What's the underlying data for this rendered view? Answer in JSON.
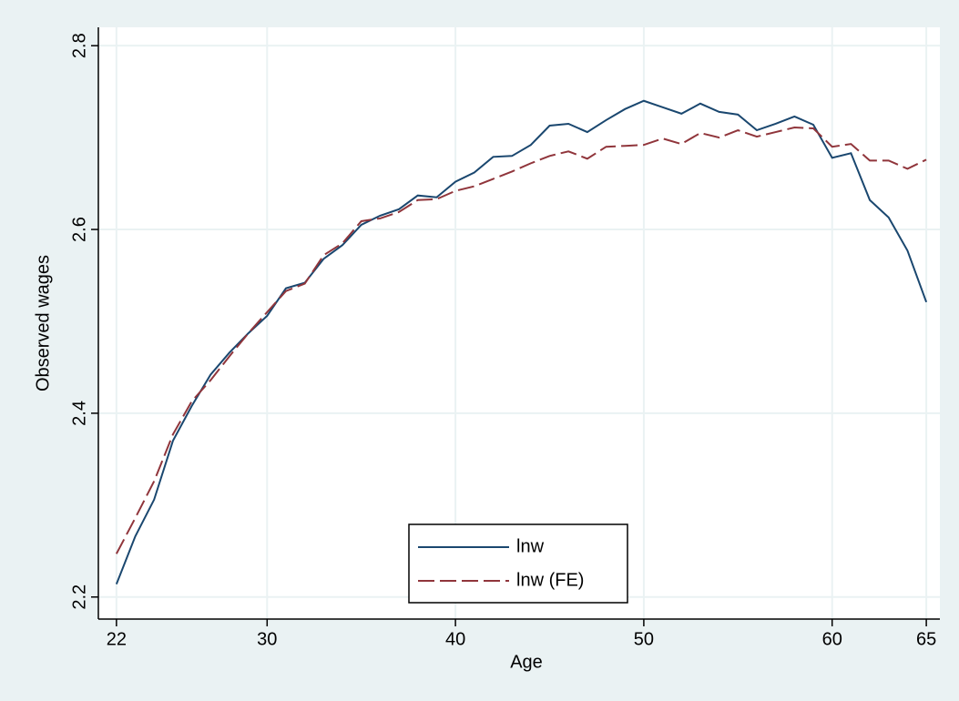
{
  "chart_data": {
    "type": "line",
    "xlabel": "Age",
    "ylabel": "Observed wages",
    "x": [
      22,
      23,
      24,
      25,
      26,
      27,
      28,
      29,
      30,
      31,
      32,
      33,
      34,
      35,
      36,
      37,
      38,
      39,
      40,
      41,
      42,
      43,
      44,
      45,
      46,
      47,
      48,
      49,
      50,
      51,
      52,
      53,
      54,
      55,
      56,
      57,
      58,
      59,
      60,
      61,
      62,
      63,
      64,
      65
    ],
    "series": [
      {
        "name": "lnw",
        "color": "#1a476f",
        "dash": "solid",
        "values": [
          2.214,
          2.266,
          2.306,
          2.37,
          2.408,
          2.442,
          2.466,
          2.487,
          2.506,
          2.536,
          2.542,
          2.568,
          2.583,
          2.605,
          2.615,
          2.622,
          2.637,
          2.635,
          2.652,
          2.662,
          2.679,
          2.68,
          2.692,
          2.713,
          2.715,
          2.706,
          2.719,
          2.731,
          2.74,
          2.733,
          2.726,
          2.737,
          2.728,
          2.725,
          2.708,
          2.715,
          2.723,
          2.714,
          2.678,
          2.683,
          2.632,
          2.613,
          2.577,
          2.521
        ]
      },
      {
        "name": "lnw (FE)",
        "color": "#90353b",
        "dash": "dashed",
        "values": [
          2.247,
          2.286,
          2.326,
          2.377,
          2.413,
          2.436,
          2.462,
          2.487,
          2.51,
          2.533,
          2.541,
          2.572,
          2.585,
          2.609,
          2.612,
          2.619,
          2.632,
          2.633,
          2.642,
          2.647,
          2.655,
          2.663,
          2.672,
          2.68,
          2.685,
          2.677,
          2.69,
          2.691,
          2.692,
          2.699,
          2.693,
          2.705,
          2.7,
          2.708,
          2.701,
          2.706,
          2.711,
          2.71,
          2.69,
          2.693,
          2.675,
          2.675,
          2.666,
          2.676
        ]
      }
    ],
    "xlim": [
      21.04,
      65.72
    ],
    "xticks": [
      22,
      30,
      40,
      50,
      60,
      65
    ],
    "ylim": [
      2.176,
      2.82
    ],
    "yticks": [
      2.2,
      2.4,
      2.6,
      2.8
    ],
    "grid": true,
    "legend": "bottom-center"
  }
}
